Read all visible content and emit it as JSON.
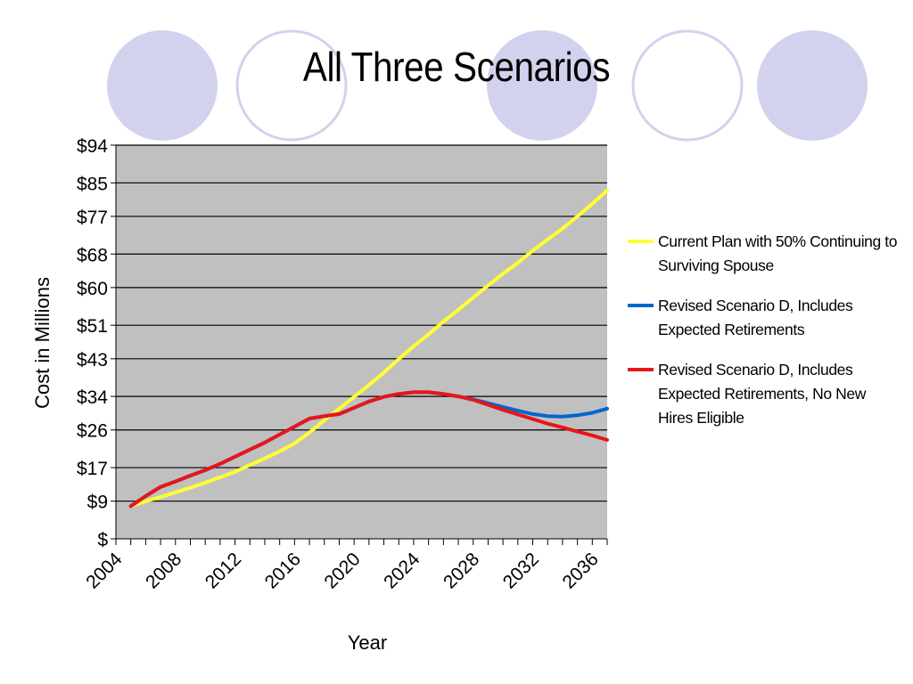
{
  "slide": {
    "title": "All Three Scenarios"
  },
  "decoration": {
    "circles": [
      {
        "style": "filled"
      },
      {
        "style": "outline"
      },
      {
        "style": "filled"
      },
      {
        "style": "outline"
      },
      {
        "style": "filled"
      }
    ],
    "fill_color": "#d2d2ee",
    "outline_color": "#d2d2ee"
  },
  "colors": {
    "plot_background": "#c0c0c0",
    "gridline": "#000000"
  },
  "chart_data": {
    "type": "line",
    "title": "",
    "xlabel": "Year",
    "ylabel": "Cost in Millions",
    "xlim": [
      2004,
      2037
    ],
    "ylim": [
      0,
      94
    ],
    "x_ticks": [
      2004,
      2008,
      2012,
      2016,
      2020,
      2024,
      2028,
      2032,
      2036
    ],
    "y_ticks": [
      {
        "value": 0,
        "label": "$"
      },
      {
        "value": 9,
        "label": "$9"
      },
      {
        "value": 17,
        "label": "$17"
      },
      {
        "value": 26,
        "label": "$26"
      },
      {
        "value": 34,
        "label": "$34"
      },
      {
        "value": 43,
        "label": "$43"
      },
      {
        "value": 51,
        "label": "$51"
      },
      {
        "value": 60,
        "label": "$60"
      },
      {
        "value": 68,
        "label": "$68"
      },
      {
        "value": 77,
        "label": "$77"
      },
      {
        "value": 85,
        "label": "$85"
      },
      {
        "value": 94,
        "label": "$94"
      }
    ],
    "grid": true,
    "legend_position": "right",
    "x": [
      2005,
      2006,
      2007,
      2008,
      2009,
      2010,
      2011,
      2012,
      2013,
      2014,
      2015,
      2016,
      2017,
      2018,
      2019,
      2020,
      2021,
      2022,
      2023,
      2024,
      2025,
      2026,
      2027,
      2028,
      2029,
      2030,
      2031,
      2032,
      2033,
      2034,
      2035,
      2036,
      2037
    ],
    "series": [
      {
        "name": "Current Plan with 50% Continuing to Surviving Spouse",
        "color": "#ffff33",
        "values": [
          7.8,
          9.0,
          10.0,
          11.1,
          12.2,
          13.4,
          14.7,
          16.0,
          17.6,
          19.2,
          20.9,
          22.8,
          25.4,
          28.3,
          31.1,
          33.9,
          36.7,
          39.7,
          42.9,
          46.0,
          48.8,
          51.9,
          54.7,
          57.6,
          60.5,
          63.3,
          65.9,
          68.8,
          71.5,
          74.1,
          77.0,
          80.0,
          83.2
        ]
      },
      {
        "name": "Revised Scenario D, Includes Expected Retirements",
        "color": "#0066cc",
        "values": [
          7.8,
          10.2,
          12.4,
          13.7,
          15.1,
          16.4,
          17.9,
          19.6,
          21.3,
          23.0,
          24.9,
          26.8,
          28.7,
          29.3,
          29.8,
          31.3,
          32.8,
          33.9,
          34.6,
          35.0,
          35.0,
          34.6,
          34.0,
          33.3,
          32.4,
          31.5,
          30.6,
          29.8,
          29.3,
          29.2,
          29.5,
          30.1,
          31.1
        ]
      },
      {
        "name": "Revised Scenario D, Includes Expected Retirements, No New Hires Eligible",
        "color": "#e8151b",
        "values": [
          7.8,
          10.2,
          12.4,
          13.7,
          15.1,
          16.4,
          17.9,
          19.6,
          21.3,
          23.0,
          24.9,
          26.8,
          28.7,
          29.3,
          29.8,
          31.3,
          32.8,
          33.9,
          34.6,
          35.0,
          35.0,
          34.6,
          34.0,
          33.2,
          32.0,
          30.8,
          29.7,
          28.6,
          27.5,
          26.6,
          25.6,
          24.7,
          23.6
        ]
      }
    ]
  }
}
